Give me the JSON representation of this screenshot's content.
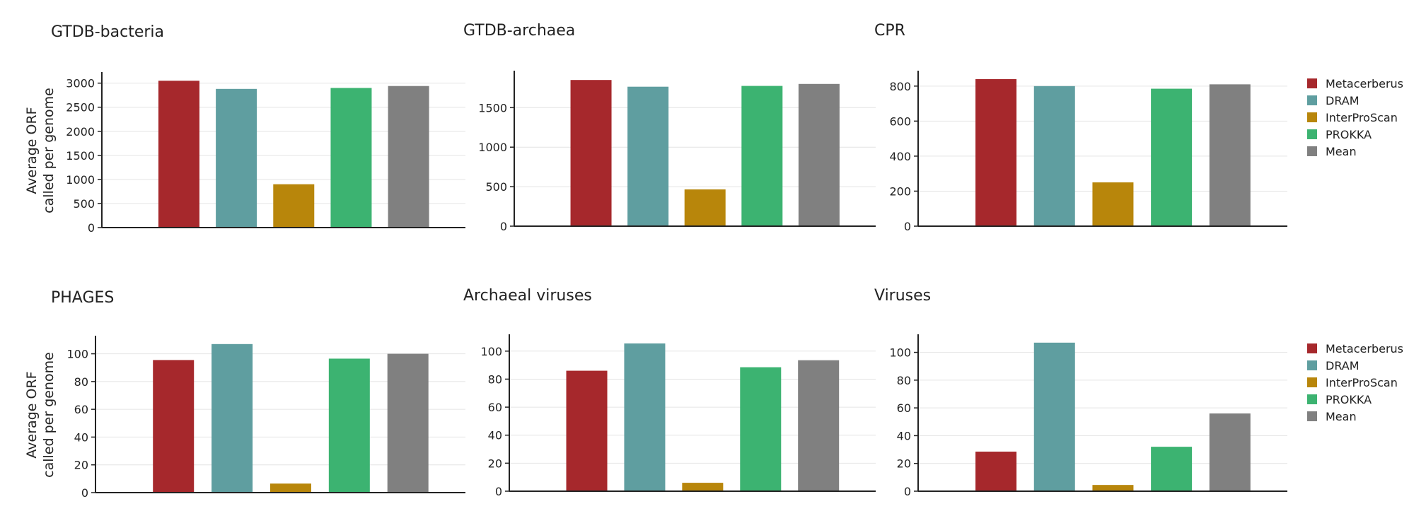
{
  "chart_data": [
    {
      "type": "bar",
      "title": "GTDB-bacteria",
      "ylabel": [
        "Average ORF",
        "called per genome"
      ],
      "ylim": [
        0,
        3200
      ],
      "yticks": [
        0,
        500,
        1000,
        1500,
        2000,
        2500,
        3000
      ],
      "series": [
        {
          "name": "Metacerberus",
          "color": "#a6282c",
          "value": 3050
        },
        {
          "name": "DRAM",
          "color": "#5f9ea0",
          "value": 2880
        },
        {
          "name": "InterProScan",
          "color": "#b8860b",
          "value": 900
        },
        {
          "name": "PROKKA",
          "color": "#3cb371",
          "value": 2900
        },
        {
          "name": "Mean",
          "color": "#808080",
          "value": 2940
        }
      ],
      "grid": true
    },
    {
      "type": "bar",
      "title": "GTDB-archaea",
      "ylabel": [],
      "ylim": [
        0,
        1950
      ],
      "yticks": [
        0,
        500,
        1000,
        1500
      ],
      "series": [
        {
          "name": "Metacerberus",
          "color": "#a6282c",
          "value": 1850
        },
        {
          "name": "DRAM",
          "color": "#5f9ea0",
          "value": 1765
        },
        {
          "name": "InterProScan",
          "color": "#b8860b",
          "value": 465
        },
        {
          "name": "PROKKA",
          "color": "#3cb371",
          "value": 1775
        },
        {
          "name": "Mean",
          "color": "#808080",
          "value": 1800
        }
      ],
      "grid": true
    },
    {
      "type": "bar",
      "title": "CPR",
      "ylabel": [],
      "ylim": [
        0,
        880
      ],
      "yticks": [
        0,
        200,
        400,
        600,
        800
      ],
      "series": [
        {
          "name": "Metacerberus",
          "color": "#a6282c",
          "value": 840
        },
        {
          "name": "DRAM",
          "color": "#5f9ea0",
          "value": 800
        },
        {
          "name": "InterProScan",
          "color": "#b8860b",
          "value": 250
        },
        {
          "name": "PROKKA",
          "color": "#3cb371",
          "value": 785
        },
        {
          "name": "Mean",
          "color": "#808080",
          "value": 810
        }
      ],
      "grid": true
    },
    {
      "type": "bar",
      "title": "PHAGES",
      "ylabel": [
        "Average ORF",
        "called per genome"
      ],
      "ylim": [
        0,
        112
      ],
      "yticks": [
        0,
        20,
        40,
        60,
        80,
        100
      ],
      "series": [
        {
          "name": "Metacerberus",
          "color": "#a6282c",
          "value": 95.5
        },
        {
          "name": "DRAM",
          "color": "#5f9ea0",
          "value": 107
        },
        {
          "name": "InterProScan",
          "color": "#b8860b",
          "value": 6.5
        },
        {
          "name": "PROKKA",
          "color": "#3cb371",
          "value": 96.5
        },
        {
          "name": "Mean",
          "color": "#808080",
          "value": 100
        }
      ],
      "grid": true
    },
    {
      "type": "bar",
      "title": "Archaeal viruses",
      "ylabel": [],
      "ylim": [
        0,
        111
      ],
      "yticks": [
        0,
        20,
        40,
        60,
        80,
        100
      ],
      "series": [
        {
          "name": "Metacerberus",
          "color": "#a6282c",
          "value": 86
        },
        {
          "name": "DRAM",
          "color": "#5f9ea0",
          "value": 105.5
        },
        {
          "name": "InterProScan",
          "color": "#b8860b",
          "value": 6
        },
        {
          "name": "PROKKA",
          "color": "#3cb371",
          "value": 88.5
        },
        {
          "name": "Mean",
          "color": "#808080",
          "value": 93.5
        }
      ],
      "grid": true
    },
    {
      "type": "bar",
      "title": "Viruses",
      "ylabel": [],
      "ylim": [
        0,
        112
      ],
      "yticks": [
        0,
        20,
        40,
        60,
        80,
        100
      ],
      "series": [
        {
          "name": "Metacerberus",
          "color": "#a6282c",
          "value": 28.5
        },
        {
          "name": "DRAM",
          "color": "#5f9ea0",
          "value": 107
        },
        {
          "name": "InterProScan",
          "color": "#b8860b",
          "value": 4.5
        },
        {
          "name": "PROKKA",
          "color": "#3cb371",
          "value": 32
        },
        {
          "name": "Mean",
          "color": "#808080",
          "value": 56
        }
      ],
      "grid": true
    }
  ],
  "legends": [
    {
      "placement": "right-top-row",
      "items": [
        {
          "label": "Metacerberus",
          "color": "#a6282c"
        },
        {
          "label": "DRAM",
          "color": "#5f9ea0"
        },
        {
          "label": "InterProScan",
          "color": "#b8860b"
        },
        {
          "label": "PROKKA",
          "color": "#3cb371"
        },
        {
          "label": "Mean",
          "color": "#808080"
        }
      ]
    },
    {
      "placement": "right-bottom-row",
      "items": [
        {
          "label": "Metacerberus",
          "color": "#a6282c"
        },
        {
          "label": "DRAM",
          "color": "#5f9ea0"
        },
        {
          "label": "InterProScan",
          "color": "#b8860b"
        },
        {
          "label": "PROKKA",
          "color": "#3cb371"
        },
        {
          "label": "Mean",
          "color": "#808080"
        }
      ]
    }
  ]
}
